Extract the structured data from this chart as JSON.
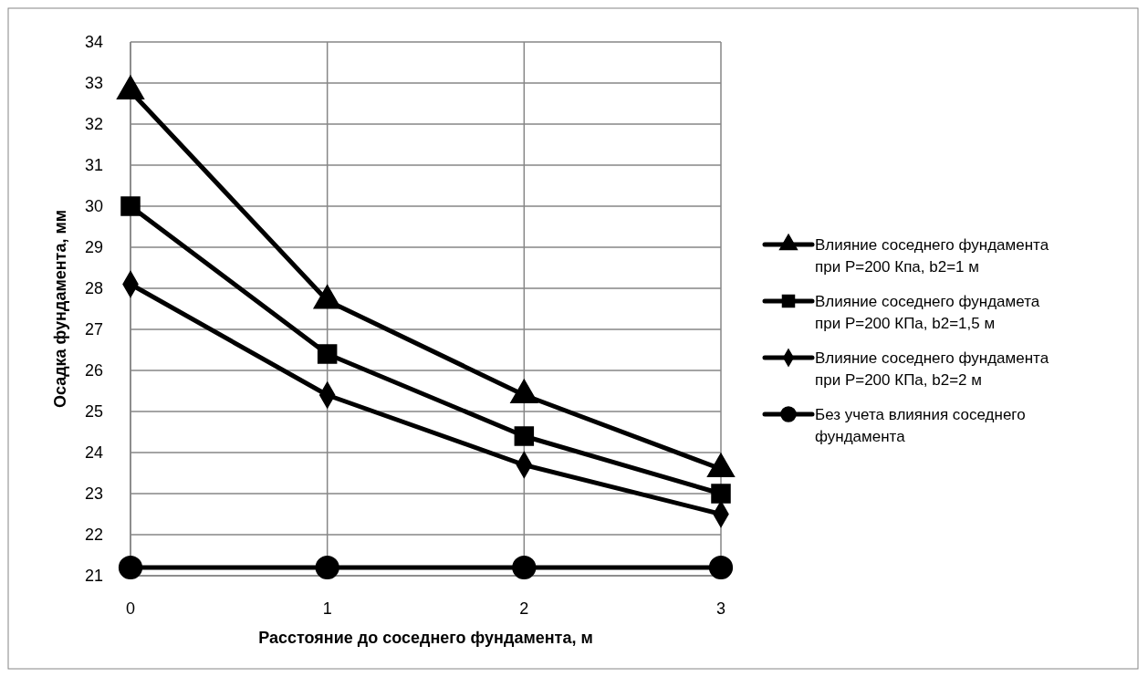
{
  "chart_data": {
    "type": "line",
    "xlabel": "Расстояние до соседнего фундамента, м",
    "ylabel": "Осадка фундамента, мм",
    "x": [
      0,
      1,
      2,
      3
    ],
    "xlim": [
      0,
      3
    ],
    "xticks": [
      0,
      1,
      2,
      3
    ],
    "ylim": [
      21,
      34
    ],
    "yticks": [
      21,
      22,
      23,
      24,
      25,
      26,
      27,
      28,
      29,
      30,
      31,
      32,
      33,
      34
    ],
    "grid": true,
    "legend": "right",
    "line_style": "solid",
    "series": [
      {
        "name": "Влияние соседнего фундамента при P=200 Кпа, b2=1 м",
        "color": "#000000",
        "marker": "triangle",
        "values": [
          32.8,
          27.7,
          25.4,
          23.6
        ]
      },
      {
        "name": "Влияние соседнего фундамета при P=200 КПа, b2=1,5 м",
        "color": "#000000",
        "marker": "square",
        "values": [
          30.0,
          26.4,
          24.4,
          23.0
        ]
      },
      {
        "name": "Влияние соседнего фундамента при P=200 КПа, b2=2 м",
        "color": "#000000",
        "marker": "diamond",
        "values": [
          28.1,
          25.4,
          23.7,
          22.5
        ]
      },
      {
        "name": "Без учета влияния соседнего фундамента",
        "color": "#000000",
        "marker": "circle",
        "values": [
          21.2,
          21.2,
          21.2,
          21.2
        ]
      }
    ]
  }
}
